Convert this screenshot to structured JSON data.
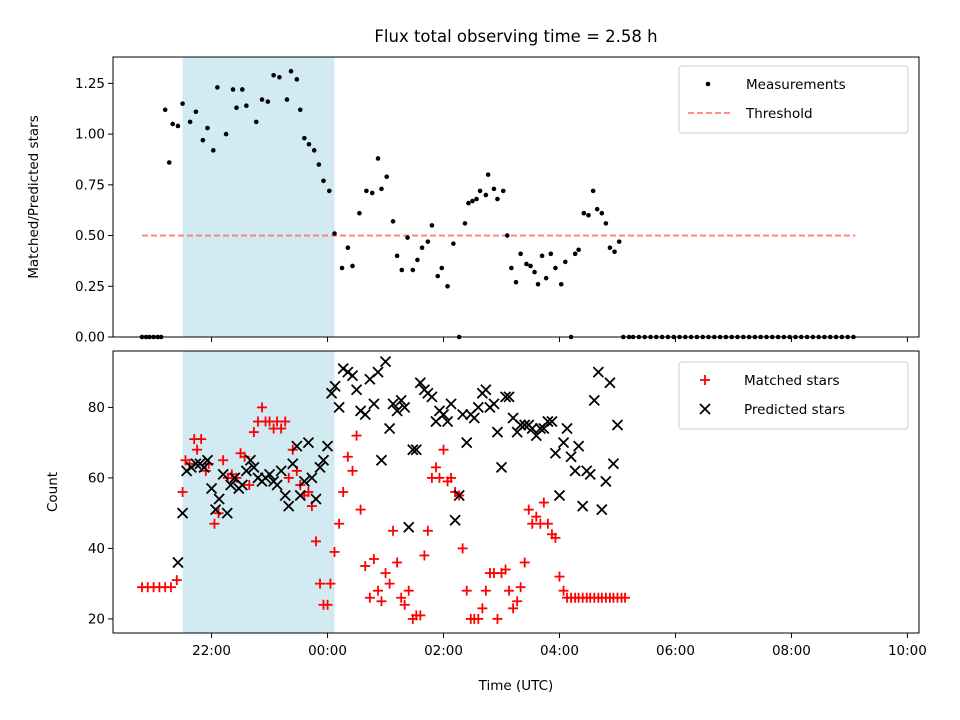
{
  "figure": {
    "title": "Flux total observing time = 2.58 h",
    "xlabel": "Time (UTC)",
    "shade_color": "#add8e6"
  },
  "chart_data": [
    {
      "type": "scatter",
      "ylabel": "Matched/Predicted stars",
      "x_unit": "hours UTC (values beyond 24 are the next day)",
      "xlim": [
        20.3,
        34.2
      ],
      "ylim": [
        0,
        1.38
      ],
      "yticks": [
        "0.00",
        "0.25",
        "0.50",
        "0.75",
        "1.00",
        "1.25"
      ],
      "shaded_span": [
        21.5,
        24.12
      ],
      "legend": {
        "placement": "upper right",
        "entries": [
          "Measurements",
          "Threshold"
        ]
      },
      "threshold": {
        "name": "Threshold",
        "value": 0.5,
        "x": [
          20.8,
          33.1
        ],
        "color": "#ff7f7f"
      },
      "series": [
        {
          "name": "Measurements",
          "color": "#000000",
          "x": [
            20.8,
            20.87,
            20.93,
            21.0,
            21.07,
            21.13,
            21.27,
            21.2,
            21.33,
            21.42,
            21.5,
            21.63,
            21.73,
            21.85,
            21.93,
            22.03,
            22.1,
            22.25,
            22.37,
            22.43,
            22.53,
            22.6,
            22.77,
            22.87,
            22.97,
            23.07,
            23.17,
            23.3,
            23.37,
            23.47,
            23.53,
            23.6,
            23.68,
            23.77,
            23.85,
            23.93,
            24.03,
            24.12,
            24.25,
            24.35,
            24.43,
            24.55,
            24.67,
            24.77,
            24.87,
            24.93,
            25.02,
            25.13,
            25.2,
            25.28,
            25.38,
            25.47,
            25.55,
            25.63,
            25.73,
            25.8,
            25.9,
            25.97,
            26.07,
            26.17,
            26.27,
            26.37,
            26.43,
            26.5,
            26.57,
            26.63,
            26.73,
            26.77,
            26.87,
            26.93,
            27.03,
            27.1,
            27.17,
            27.25,
            27.33,
            27.43,
            27.5,
            27.57,
            27.63,
            27.7,
            27.77,
            27.85,
            27.93,
            28.03,
            28.1,
            28.2,
            28.27,
            28.33,
            28.42,
            28.5,
            28.58,
            28.65,
            28.73,
            28.8,
            28.87,
            28.95,
            29.03,
            29.1,
            29.2,
            29.27,
            29.37,
            29.47,
            29.57,
            29.67,
            29.77,
            29.87,
            29.97,
            30.07,
            30.17,
            30.27,
            30.37,
            30.47,
            30.57,
            30.67,
            30.77,
            30.87,
            30.97,
            31.07,
            31.17,
            31.27,
            31.37,
            31.47,
            31.57,
            31.67,
            31.77,
            31.87,
            31.97,
            32.07,
            32.17,
            32.27,
            32.37,
            32.47,
            32.57,
            32.67,
            32.77,
            32.87,
            32.97,
            33.07
          ],
          "y": [
            0,
            0,
            0,
            0,
            0,
            0,
            0.86,
            1.12,
            1.05,
            1.04,
            1.15,
            1.06,
            1.11,
            0.97,
            1.03,
            0.92,
            1.23,
            1.0,
            1.22,
            1.13,
            1.22,
            1.14,
            1.06,
            1.17,
            1.16,
            1.29,
            1.28,
            1.17,
            1.31,
            1.27,
            1.12,
            0.98,
            0.95,
            0.92,
            0.85,
            0.77,
            0.72,
            0.51,
            0.34,
            0.44,
            0.35,
            0.61,
            0.72,
            0.71,
            0.88,
            0.73,
            0.79,
            0.57,
            0.4,
            0.33,
            0.49,
            0.33,
            0.38,
            0.44,
            0.47,
            0.55,
            0.3,
            0.34,
            0.25,
            0.46,
            0.0,
            0.56,
            0.66,
            0.67,
            0.68,
            0.72,
            0.7,
            0.8,
            0.73,
            0.68,
            0.72,
            0.5,
            0.34,
            0.27,
            0.41,
            0.36,
            0.35,
            0.32,
            0.26,
            0.4,
            0.29,
            0.41,
            0.34,
            0.26,
            0.37,
            0.0,
            0.41,
            0.43,
            0.61,
            0.6,
            0.72,
            0.63,
            0.61,
            0.56,
            0.44,
            0.42,
            0.47,
            0,
            0,
            0,
            0,
            0,
            0,
            0,
            0,
            0,
            0,
            0,
            0,
            0,
            0,
            0,
            0,
            0,
            0,
            0,
            0,
            0,
            0,
            0,
            0,
            0,
            0,
            0,
            0,
            0,
            0,
            0,
            0,
            0,
            0,
            0,
            0,
            0,
            0,
            0,
            0,
            0
          ]
        }
      ]
    },
    {
      "type": "scatter",
      "ylabel": "Count",
      "x_unit": "hours UTC (values beyond 24 are the next day)",
      "xlim": [
        20.3,
        34.2
      ],
      "ylim": [
        16,
        96
      ],
      "yticks": [
        "20",
        "40",
        "60",
        "80"
      ],
      "xticks": [
        "22:00",
        "00:00",
        "02:00",
        "04:00",
        "06:00",
        "08:00",
        "10:00"
      ],
      "shaded_span": [
        21.5,
        24.12
      ],
      "legend": {
        "placement": "upper right",
        "entries": [
          "Matched stars",
          "Predicted stars"
        ]
      },
      "series": [
        {
          "name": "Matched stars",
          "marker": "+",
          "color": "#ff0000",
          "x": [
            20.8,
            20.9,
            21.0,
            21.1,
            21.2,
            21.3,
            21.4,
            21.5,
            21.55,
            21.62,
            21.7,
            21.75,
            21.82,
            21.9,
            21.95,
            22.05,
            22.12,
            22.2,
            22.28,
            22.35,
            22.43,
            22.5,
            22.57,
            22.65,
            22.73,
            22.8,
            22.87,
            22.93,
            23.0,
            23.07,
            23.13,
            23.2,
            23.27,
            23.33,
            23.4,
            23.47,
            23.53,
            23.6,
            23.67,
            23.73,
            23.8,
            23.87,
            23.93,
            24.0,
            24.05,
            24.12,
            24.2,
            24.27,
            24.35,
            24.43,
            24.5,
            24.57,
            24.65,
            24.73,
            24.8,
            24.87,
            24.93,
            25.0,
            25.07,
            25.13,
            25.2,
            25.27,
            25.33,
            25.4,
            25.47,
            25.53,
            25.6,
            25.67,
            25.73,
            25.8,
            25.87,
            25.93,
            26.0,
            26.07,
            26.13,
            26.2,
            26.27,
            26.33,
            26.4,
            26.47,
            26.53,
            26.6,
            26.67,
            26.73,
            26.8,
            26.87,
            26.93,
            27.0,
            27.07,
            27.13,
            27.2,
            27.27,
            27.33,
            27.4,
            27.47,
            27.53,
            27.6,
            27.67,
            27.73,
            27.8,
            27.87,
            27.93,
            28.0,
            28.07,
            28.13,
            28.2,
            28.27,
            28.33,
            28.4,
            28.47,
            28.53,
            28.6,
            28.67,
            28.73,
            28.8,
            28.87,
            28.93,
            29.0,
            29.07,
            29.13
          ],
          "y": [
            29,
            29,
            29,
            29,
            29,
            29,
            31,
            56,
            65,
            64,
            71,
            68,
            71,
            62,
            64,
            47,
            50,
            65,
            60,
            61,
            60,
            67,
            66,
            58,
            73,
            76,
            80,
            76,
            76,
            74,
            76,
            74,
            76,
            60,
            68,
            62,
            58,
            55,
            56,
            52,
            42,
            30,
            24,
            24,
            30,
            39,
            47,
            56,
            66,
            62,
            72,
            51,
            35,
            26,
            37,
            28,
            25,
            33,
            30,
            45,
            36,
            26,
            24,
            28,
            20,
            21,
            21,
            38,
            45,
            60,
            63,
            60,
            68,
            59,
            60,
            56,
            55,
            40,
            28,
            20,
            20,
            20,
            23,
            28,
            33,
            33,
            20,
            33,
            34,
            28,
            23,
            25,
            29,
            36,
            51,
            47,
            49,
            47,
            53,
            47,
            44,
            43,
            32,
            28,
            26,
            26,
            26,
            26,
            26,
            26,
            26,
            26,
            26,
            26,
            26,
            26,
            26,
            26,
            26,
            26
          ]
        },
        {
          "name": "Predicted stars",
          "marker": "x",
          "color": "#000000",
          "x": [
            21.42,
            21.5,
            21.57,
            21.65,
            21.73,
            21.8,
            21.87,
            21.93,
            22.0,
            22.07,
            22.13,
            22.2,
            22.27,
            22.33,
            22.4,
            22.47,
            22.53,
            22.6,
            22.67,
            22.73,
            22.8,
            22.87,
            22.93,
            23.0,
            23.07,
            23.13,
            23.2,
            23.27,
            23.33,
            23.4,
            23.47,
            23.53,
            23.6,
            23.67,
            23.73,
            23.8,
            23.87,
            23.93,
            24.0,
            24.07,
            24.13,
            24.2,
            24.27,
            24.35,
            24.43,
            24.5,
            24.57,
            24.65,
            24.73,
            24.8,
            24.87,
            24.93,
            25.0,
            25.07,
            25.13,
            25.2,
            25.27,
            25.33,
            25.4,
            25.47,
            25.53,
            25.6,
            25.67,
            25.73,
            25.8,
            25.87,
            25.93,
            26.0,
            26.07,
            26.13,
            26.2,
            26.27,
            26.33,
            26.4,
            26.47,
            26.53,
            26.6,
            26.67,
            26.73,
            26.8,
            26.87,
            26.93,
            27.0,
            27.07,
            27.13,
            27.2,
            27.27,
            27.33,
            27.4,
            27.47,
            27.53,
            27.6,
            27.67,
            27.73,
            27.8,
            27.87,
            27.93,
            28.0,
            28.07,
            28.13,
            28.2,
            28.27,
            28.33,
            28.4,
            28.47,
            28.53,
            28.6,
            28.67,
            28.73,
            28.8,
            28.87,
            28.93,
            29.0
          ],
          "y": [
            36,
            50,
            62,
            63,
            64,
            64,
            63,
            65,
            57,
            51,
            54,
            61,
            50,
            58,
            60,
            57,
            58,
            62,
            65,
            63,
            60,
            59,
            60,
            61,
            59,
            58,
            62,
            55,
            52,
            64,
            69,
            55,
            59,
            70,
            60,
            54,
            63,
            65,
            69,
            84,
            86,
            80,
            91,
            90,
            89,
            85,
            79,
            78,
            88,
            81,
            90,
            65,
            93,
            74,
            81,
            79,
            82,
            80,
            46,
            68,
            68,
            87,
            85,
            84,
            83,
            76,
            79,
            78,
            76,
            81,
            48,
            55,
            78,
            70,
            78,
            77,
            80,
            84,
            85,
            80,
            81,
            73,
            63,
            83,
            83,
            77,
            73,
            75,
            75,
            75,
            74,
            72,
            74,
            74,
            76,
            76,
            67,
            55,
            70,
            74,
            66,
            62,
            69,
            52,
            62,
            61,
            82,
            90,
            51,
            59,
            87,
            64,
            75
          ]
        }
      ]
    }
  ]
}
